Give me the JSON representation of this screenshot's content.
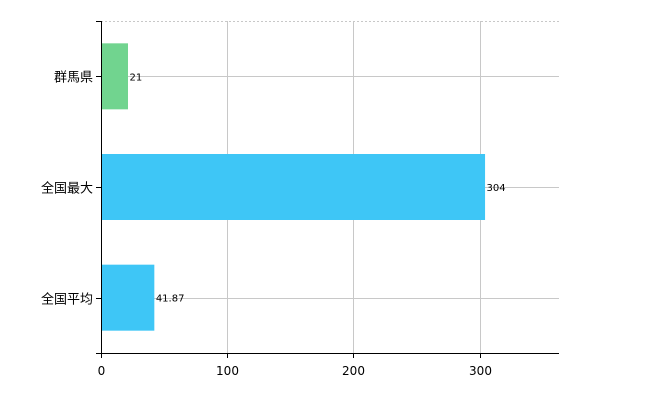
{
  "chart_data": {
    "type": "bar",
    "orientation": "horizontal",
    "categories": [
      "群馬県",
      "全国最大",
      "全国平均"
    ],
    "values": [
      21,
      304,
      41.87
    ],
    "value_labels": [
      "21",
      "304",
      "41.87"
    ],
    "bar_colors": [
      "#71d48f",
      "#3ec6f6",
      "#3ec6f6"
    ],
    "x_ticks": [
      0,
      100,
      200,
      300
    ],
    "x_tick_labels": [
      "0",
      "100",
      "200",
      "300"
    ],
    "xlim": [
      0,
      363
    ],
    "grid": true,
    "legend": "none",
    "title": "",
    "xlabel": "",
    "ylabel": ""
  }
}
